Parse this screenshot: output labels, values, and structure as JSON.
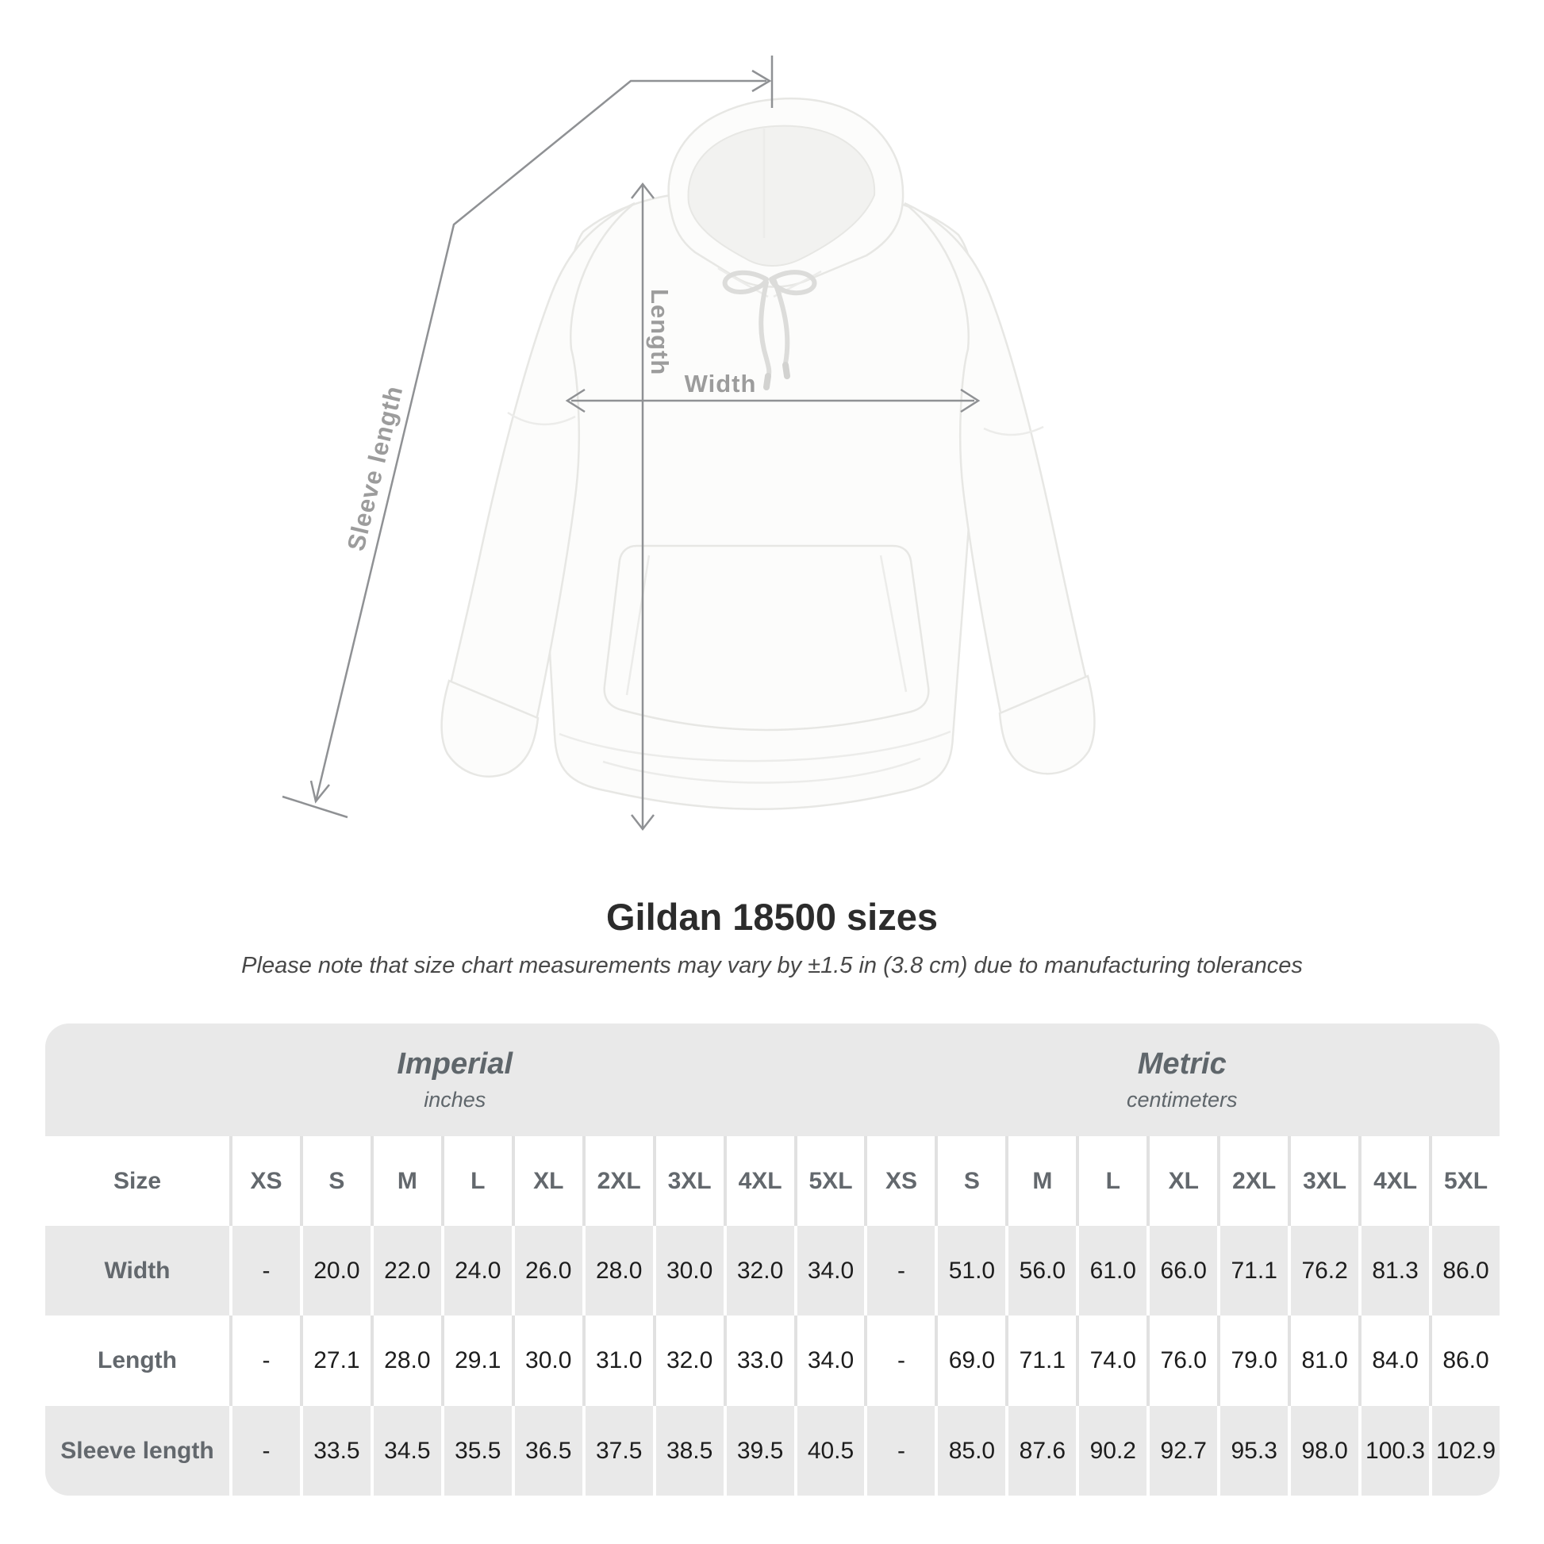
{
  "title": "Gildan 18500 sizes",
  "subtitle": "Please note that size chart measurements may vary by ±1.5 in (3.8 cm) due to manufacturing tolerances",
  "figure": {
    "width_label": "Width",
    "length_label": "Length",
    "sleeve_label": "Sleeve length"
  },
  "table": {
    "size_label": "Size",
    "groups": [
      {
        "name": "Imperial",
        "unit": "inches"
      },
      {
        "name": "Metric",
        "unit": "centimeters"
      }
    ],
    "columns": [
      "XS",
      "S",
      "M",
      "L",
      "XL",
      "2XL",
      "3XL",
      "4XL",
      "5XL",
      "XS",
      "S",
      "M",
      "L",
      "XL",
      "2XL",
      "3XL",
      "4XL",
      "5XL"
    ],
    "rows": [
      {
        "label": "Width",
        "values": [
          "-",
          "20.0",
          "22.0",
          "24.0",
          "26.0",
          "28.0",
          "30.0",
          "32.0",
          "34.0",
          "-",
          "51.0",
          "56.0",
          "61.0",
          "66.0",
          "71.1",
          "76.2",
          "81.3",
          "86.0"
        ]
      },
      {
        "label": "Length",
        "values": [
          "-",
          "27.1",
          "28.0",
          "29.1",
          "30.0",
          "31.0",
          "32.0",
          "33.0",
          "34.0",
          "-",
          "69.0",
          "71.1",
          "74.0",
          "76.0",
          "79.0",
          "81.0",
          "84.0",
          "86.0"
        ]
      },
      {
        "label": "Sleeve length",
        "values": [
          "-",
          "33.5",
          "34.5",
          "35.5",
          "36.5",
          "37.5",
          "38.5",
          "39.5",
          "40.5",
          "-",
          "85.0",
          "87.6",
          "90.2",
          "92.7",
          "95.3",
          "98.0",
          "100.3",
          "102.9"
        ]
      }
    ]
  },
  "chart_data": {
    "type": "table",
    "title": "Gildan 18500 sizes",
    "note": "Please note that size chart measurements may vary by ±1.5 in (3.8 cm) due to manufacturing tolerances",
    "sizes": [
      "XS",
      "S",
      "M",
      "L",
      "XL",
      "2XL",
      "3XL",
      "4XL",
      "5XL"
    ],
    "measurements": [
      {
        "name": "Width",
        "imperial_inches": [
          null,
          20.0,
          22.0,
          24.0,
          26.0,
          28.0,
          30.0,
          32.0,
          34.0
        ],
        "metric_cm": [
          null,
          51.0,
          56.0,
          61.0,
          66.0,
          71.1,
          76.2,
          81.3,
          86.0
        ]
      },
      {
        "name": "Length",
        "imperial_inches": [
          null,
          27.1,
          28.0,
          29.1,
          30.0,
          31.0,
          32.0,
          33.0,
          34.0
        ],
        "metric_cm": [
          null,
          69.0,
          71.1,
          74.0,
          76.0,
          79.0,
          81.0,
          84.0,
          86.0
        ]
      },
      {
        "name": "Sleeve length",
        "imperial_inches": [
          null,
          33.5,
          34.5,
          35.5,
          36.5,
          37.5,
          38.5,
          39.5,
          40.5
        ],
        "metric_cm": [
          null,
          85.0,
          87.6,
          90.2,
          92.7,
          95.3,
          98.0,
          100.3,
          102.9
        ]
      }
    ]
  }
}
